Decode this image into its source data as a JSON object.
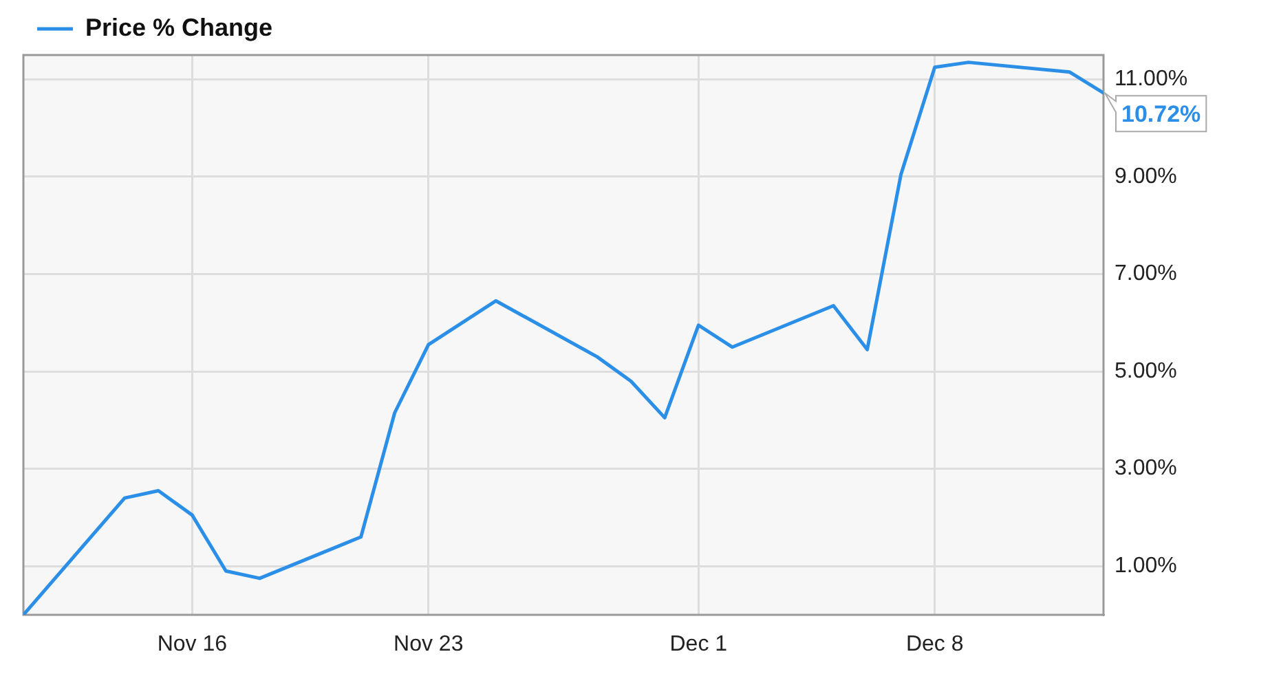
{
  "chart_data": {
    "type": "line",
    "x": [
      "--11-11",
      "--11-14",
      "--11-15",
      "--11-16",
      "--11-17",
      "--11-18",
      "--11-21",
      "--11-22",
      "--11-23",
      "--11-25",
      "--11-28",
      "--11-29",
      "--11-30",
      "--12-01",
      "--12-02",
      "--12-05",
      "--12-06",
      "--12-07",
      "--12-08",
      "--12-09",
      "--12-12",
      "--12-13"
    ],
    "series": [
      {
        "name": "Price % Change",
        "color": "#2b8fe8",
        "values": [
          0,
          2.4,
          2.55,
          2.05,
          0.9,
          0.75,
          1.6,
          4.15,
          5.55,
          6.45,
          5.3,
          4.8,
          4.05,
          5.95,
          5.5,
          6.35,
          5.45,
          9.05,
          11.25,
          11.35,
          11.15,
          10.72
        ],
        "value_labels": [
          null,
          null,
          null,
          null,
          null,
          null,
          null,
          null,
          null,
          null,
          null,
          null,
          null,
          null,
          null,
          null,
          null,
          null,
          null,
          null,
          null,
          "10.72%"
        ]
      }
    ],
    "xlim": [
      "--11-11",
      "--12-13"
    ],
    "xticks": [
      {
        "value": "--11-16",
        "label": "Nov 16"
      },
      {
        "value": "--11-23",
        "label": "Nov 23"
      },
      {
        "value": "--12-01",
        "label": "Dec 1"
      },
      {
        "value": "--12-08",
        "label": "Dec 8"
      }
    ],
    "ylim": [
      0,
      11.5
    ],
    "yticks": [
      {
        "value": 1,
        "label": "1.00%"
      },
      {
        "value": 3,
        "label": "3.00%"
      },
      {
        "value": 5,
        "label": "5.00%"
      },
      {
        "value": 7,
        "label": "7.00%"
      },
      {
        "value": 9,
        "label": "9.00%"
      },
      {
        "value": 11,
        "label": "11.00%"
      }
    ],
    "grid": true,
    "legend": "top left"
  }
}
